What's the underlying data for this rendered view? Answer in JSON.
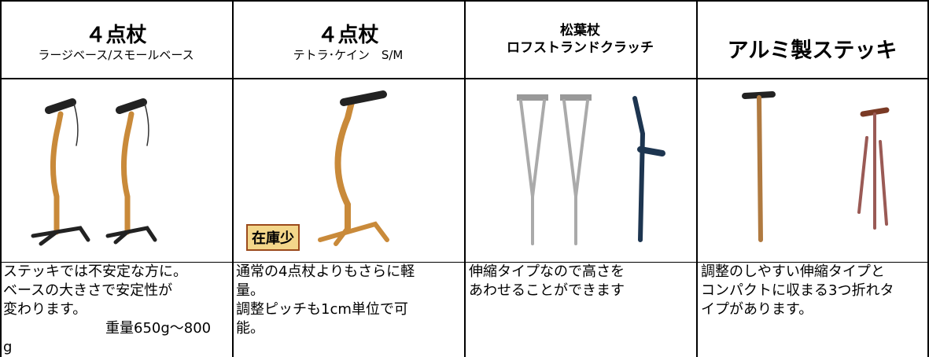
{
  "columns": [
    {
      "title": "４点杖",
      "subtitle": "ラージベース/スモールベース",
      "description": [
        "ステッキでは不安定な方に。",
        "ベースの大きさで安定性が",
        "変わります。"
      ],
      "note": [
        "重量650g～800",
        "g"
      ]
    },
    {
      "title": "４点杖",
      "subtitle": "テトラ･ケイン　S/M",
      "badge": "在庫少",
      "description": [
        "通常の4点杖よりもさらに軽",
        "量。",
        "調整ピッチも1cm単位で可",
        "能。"
      ]
    },
    {
      "title": "松葉杖",
      "subtitle": "ロフストランドクラッチ",
      "description": [
        "伸縮タイプなので高さを",
        "あわせることができます"
      ]
    },
    {
      "title": "アルミ製ステッキ",
      "description": [
        "調整のしやすい伸縮タイプと",
        "コンパクトに収まる3つ折れタ",
        "イプがあります。"
      ]
    }
  ]
}
